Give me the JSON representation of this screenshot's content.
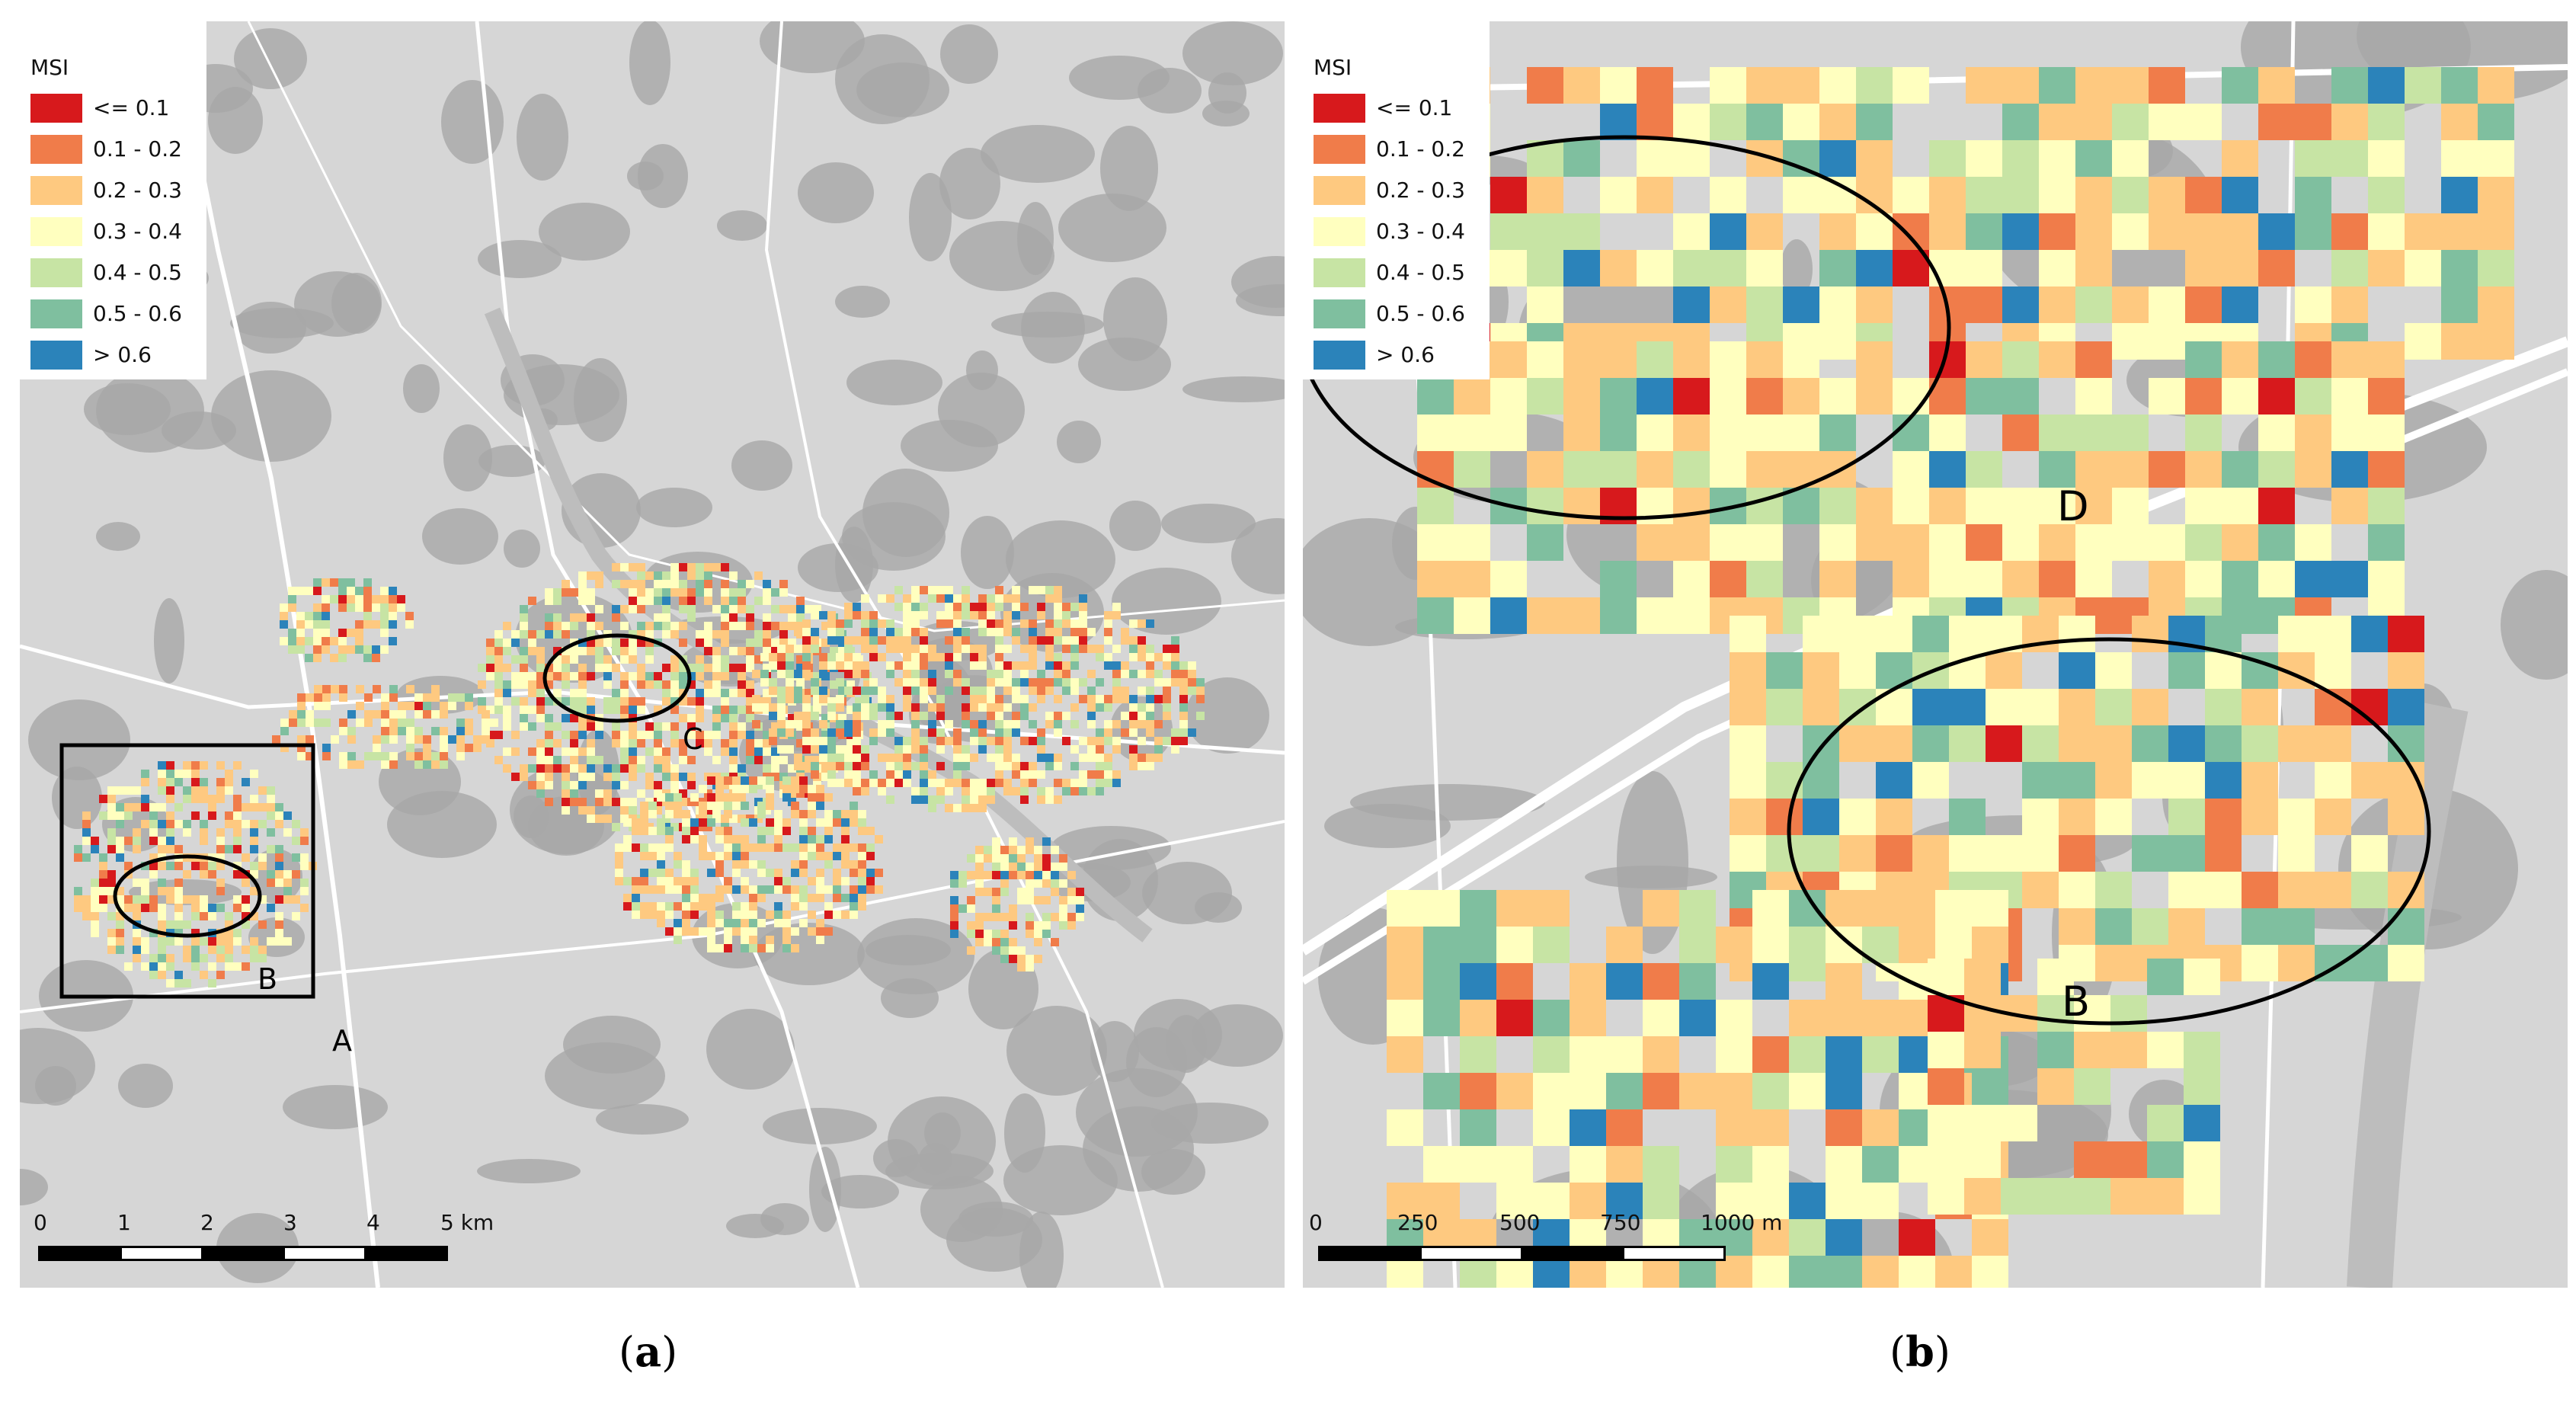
{
  "legend": {
    "title": "MSI",
    "items": [
      {
        "label": "<= 0.1",
        "color": "#d7191c"
      },
      {
        "label": "0.1 - 0.2",
        "color": "#f07c4a"
      },
      {
        "label": "0.2 - 0.3",
        "color": "#fec980"
      },
      {
        "label": "0.3 - 0.4",
        "color": "#ffffbf"
      },
      {
        "label": "0.4 - 0.5",
        "color": "#c7e4a4"
      },
      {
        "label": "0.5 - 0.6",
        "color": "#7fbf9f"
      },
      {
        "label": "> 0.6",
        "color": "#2b83ba"
      }
    ]
  },
  "panel_a": {
    "scale_labels": [
      "0",
      "1",
      "2",
      "3",
      "4",
      "5 km"
    ],
    "labels": {
      "a": "A",
      "b": "B",
      "c": "C"
    },
    "caption_letter": "a"
  },
  "panel_b": {
    "scale_labels": [
      "0",
      "250",
      "500",
      "750",
      "1000 m"
    ],
    "labels": {
      "d": "D",
      "b": "B"
    },
    "caption_letter": "b"
  },
  "colors": {
    "basemap": "#d6d6d6",
    "forest": "#a8a8a8",
    "roads": "#ffffff",
    "river": "#c4c4c4"
  }
}
